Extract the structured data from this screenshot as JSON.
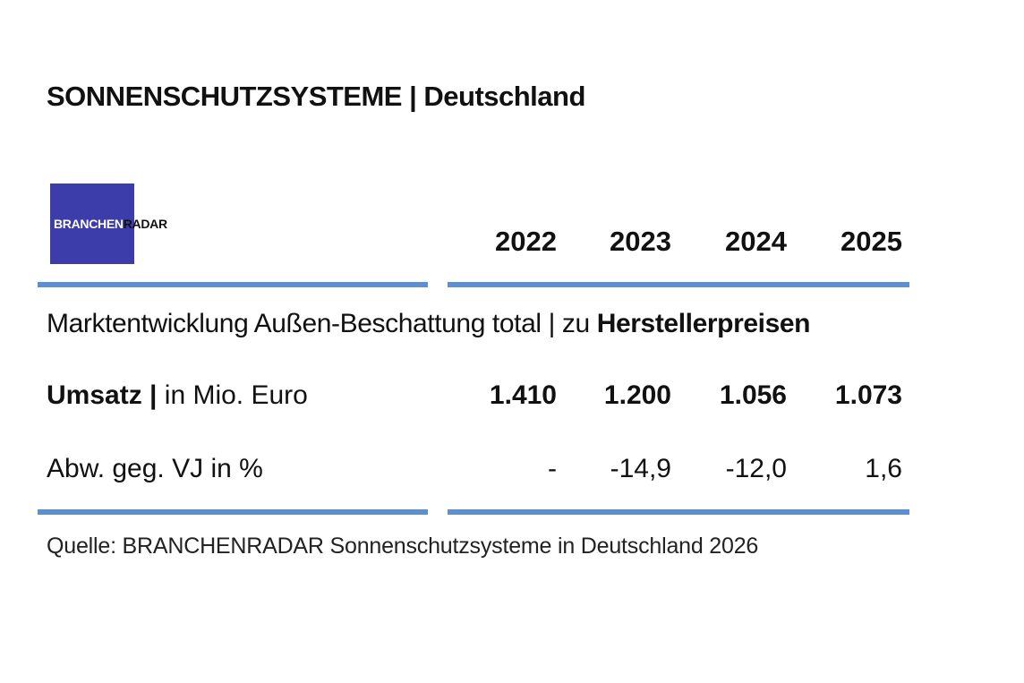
{
  "header": {
    "title": "SONNENSCHUTZSYSTEME | Deutschland"
  },
  "logo": {
    "part1": "BRANCHEN",
    "part2": "RADAR"
  },
  "table": {
    "columns": [
      "2022",
      "2023",
      "2024",
      "2025"
    ],
    "subtitle": {
      "text": "Marktentwicklung Außen-Beschattung total | zu ",
      "bold": "Herstellerpreisen"
    },
    "rows": [
      {
        "label_bold": "Umsatz |",
        "label": " in Mio. Euro",
        "values": [
          "1.410",
          "1.200",
          "1.056",
          "1.073"
        ]
      },
      {
        "label": "Abw. geg. VJ in %",
        "values": [
          "-",
          "-14,9",
          "-12,0",
          "1,6"
        ]
      }
    ]
  },
  "source": "Quelle: BRANCHENRADAR Sonnenschutzsysteme in Deutschland 2026"
}
